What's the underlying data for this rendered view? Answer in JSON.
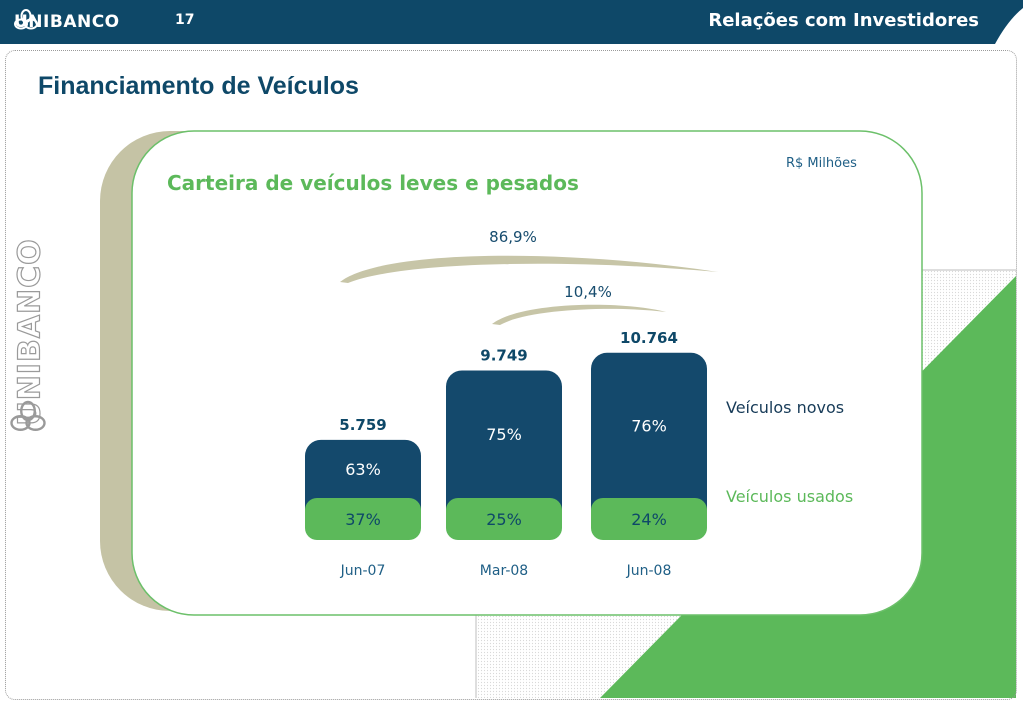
{
  "header": {
    "brand": "UNIBANCO",
    "page_number": "17",
    "section_title": "Relações com Investidores"
  },
  "sidebar_logo": {
    "text": "UNIBANCO"
  },
  "slide": {
    "title": "Financiamento de Veículos"
  },
  "chart_data": {
    "type": "bar",
    "title": "Carteira de veículos leves e pesados",
    "unit": "R$ Milhões",
    "categories": [
      "Jun-07",
      "Mar-08",
      "Jun-08"
    ],
    "totals": [
      5759,
      9749,
      10764
    ],
    "total_labels": [
      "5.759",
      "9.749",
      "10.764"
    ],
    "series": [
      {
        "name": "Veículos novos",
        "values": [
          63,
          75,
          76
        ],
        "labels": [
          "63%",
          "75%",
          "76%"
        ],
        "color": "#14496c"
      },
      {
        "name": "Veículos usados",
        "values": [
          37,
          25,
          24
        ],
        "labels": [
          "37%",
          "25%",
          "24%"
        ],
        "color": "#5cb95a"
      }
    ],
    "growth": [
      {
        "from": "Jun-07",
        "to": "Jun-08",
        "label": "86,9%"
      },
      {
        "from": "Mar-08",
        "to": "Jun-08",
        "label": "10,4%"
      }
    ]
  },
  "colors": {
    "navy": "#0e4868",
    "green": "#5cb95a",
    "olive": "#c8c6a8"
  }
}
